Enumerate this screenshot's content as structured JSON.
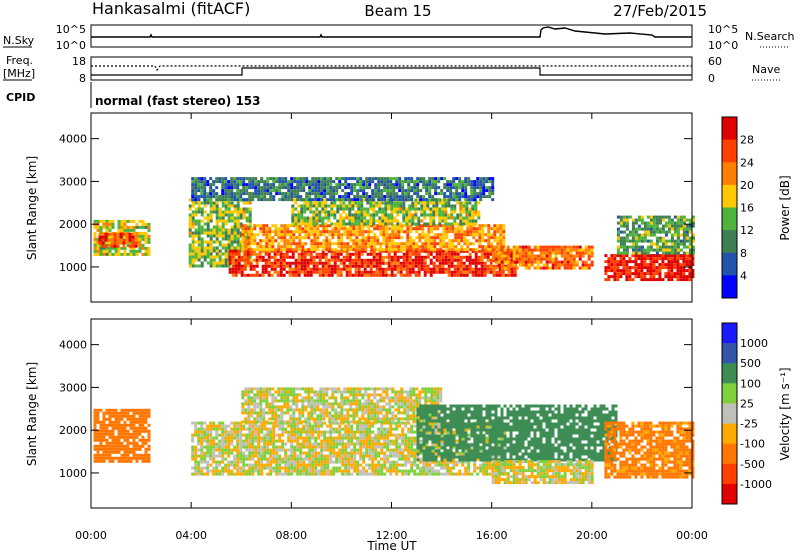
{
  "header": {
    "station": "Hankasalmi (fitACF)",
    "beam": "Beam 15",
    "date": "27/Feb/2015",
    "program": "normal (fast stereo) 153"
  },
  "noise_panel": {
    "left_label": "N.Sky",
    "right_label": "N.Search",
    "left_ticks": [
      "10^5",
      "10^0"
    ],
    "right_ticks": [
      "10^5",
      "10^0"
    ],
    "right_line_style": "dotted"
  },
  "freq_panel": {
    "left_label_line1": "Freq.",
    "left_label_line2": "[MHz]",
    "right_label": "Nave",
    "left_ticks": [
      "18",
      "8"
    ],
    "right_ticks": [
      "60",
      "0"
    ],
    "right_line_style": "dotted"
  },
  "cpid_label": "CPID",
  "colors": {
    "power_scale": [
      "#0000ff",
      "#2255aa",
      "#3f7f53",
      "#4db33d",
      "#ffc800",
      "#ff7f00",
      "#ff4000",
      "#e00000"
    ],
    "velocity_scale": [
      "#1a1aff",
      "#3355aa",
      "#3d8d55",
      "#7fd03d",
      "#c0c0b8",
      "#ffaa00",
      "#ff7700",
      "#ff4000",
      "#e00000"
    ]
  },
  "chart_data": [
    {
      "type": "heatmap",
      "panel": "power",
      "ylabel": "Slant Range [km]",
      "ylim": [
        180,
        4600
      ],
      "yticks": [
        "4000",
        "3000",
        "2000",
        "1000"
      ],
      "xlim_hours": [
        0,
        24
      ],
      "colorbar": {
        "title": "Power [dB]",
        "ticks": [
          "28",
          "24",
          "20",
          "16",
          "12",
          "8",
          "4"
        ],
        "range": [
          0,
          30
        ]
      },
      "regions": [
        {
          "t": [
            0.1,
            2.3
          ],
          "r": [
            1300,
            2100
          ],
          "level": 16
        },
        {
          "t": [
            0.3,
            1.8
          ],
          "r": [
            1500,
            1800
          ],
          "level": 24
        },
        {
          "t": [
            3.9,
            6.3
          ],
          "r": [
            1000,
            2600
          ],
          "level": 14
        },
        {
          "t": [
            5.5,
            17.0
          ],
          "r": [
            800,
            1400
          ],
          "level": 26
        },
        {
          "t": [
            6.0,
            16.5
          ],
          "r": [
            1400,
            2000
          ],
          "level": 20
        },
        {
          "t": [
            8.0,
            15.5
          ],
          "r": [
            2000,
            2600
          ],
          "level": 14
        },
        {
          "t": [
            16.0,
            20.0
          ],
          "r": [
            1000,
            1500
          ],
          "level": 22
        },
        {
          "t": [
            20.5,
            24.0
          ],
          "r": [
            700,
            1300
          ],
          "level": 28
        },
        {
          "t": [
            21.0,
            24.0
          ],
          "r": [
            1300,
            2200
          ],
          "level": 12
        },
        {
          "t": [
            4.0,
            16.0
          ],
          "r": [
            2600,
            3100
          ],
          "level": 8
        }
      ]
    },
    {
      "type": "heatmap",
      "panel": "velocity",
      "ylabel": "Slant Range [km]",
      "ylim": [
        180,
        4600
      ],
      "yticks": [
        "4000",
        "3000",
        "2000",
        "1000"
      ],
      "xlabel": "Time UT",
      "xticks": [
        "00:00",
        "04:00",
        "08:00",
        "12:00",
        "16:00",
        "20:00",
        "00:00"
      ],
      "xlim_hours": [
        0,
        24
      ],
      "colorbar": {
        "title": "Velocity [m s⁻¹]",
        "ticks": [
          "1000",
          "500",
          "100",
          "25",
          "-25",
          "-100",
          "-500",
          "-1000"
        ]
      },
      "regions": [
        {
          "t": [
            0.1,
            2.3
          ],
          "r": [
            1300,
            2500
          ],
          "vel": -300
        },
        {
          "t": [
            4.0,
            16.5
          ],
          "r": [
            1000,
            2200
          ],
          "vel": 0
        },
        {
          "t": [
            6.0,
            14.0
          ],
          "r": [
            2200,
            3000
          ],
          "vel": 0
        },
        {
          "t": [
            13.0,
            21.0
          ],
          "r": [
            1300,
            2600
          ],
          "vel": 200
        },
        {
          "t": [
            16.0,
            20.0
          ],
          "r": [
            800,
            1300
          ],
          "vel": 0
        },
        {
          "t": [
            20.5,
            24.0
          ],
          "r": [
            900,
            2200
          ],
          "vel": -150
        }
      ]
    }
  ]
}
